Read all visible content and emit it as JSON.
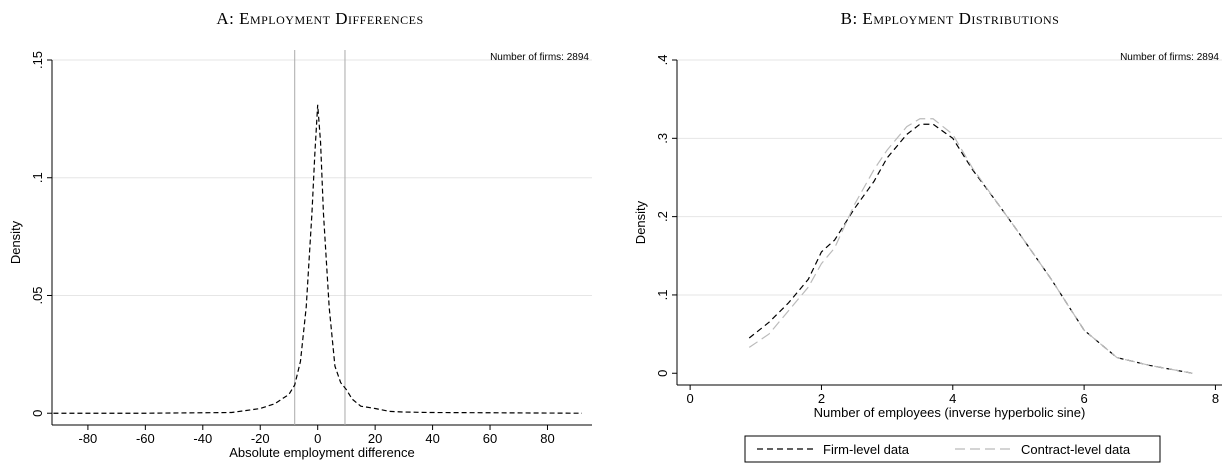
{
  "chart_data": [
    {
      "type": "line",
      "title": "A: Employment Differences",
      "annotation": "Number of firms: 2894",
      "xlabel": "Absolute employment difference",
      "ylabel": "Density",
      "x": [
        -92,
        -60,
        -30,
        -20,
        -15,
        -10,
        -8,
        -6,
        -4,
        -2,
        -1,
        0,
        1,
        2,
        4,
        6,
        8,
        10,
        12,
        15,
        20,
        25,
        30,
        40,
        60,
        92
      ],
      "values": [
        0,
        0,
        0.0003,
        0.002,
        0.004,
        0.008,
        0.012,
        0.022,
        0.045,
        0.085,
        0.11,
        0.131,
        0.115,
        0.085,
        0.045,
        0.02,
        0.013,
        0.01,
        0.006,
        0.003,
        0.002,
        0.0008,
        0.0005,
        0.0003,
        0.0002,
        0
      ],
      "color": "#000000",
      "vlines": [
        -8,
        9.5
      ],
      "xlim": [
        -92.5,
        95.5
      ],
      "xticks": [
        -80,
        -60,
        -40,
        -20,
        0,
        20,
        40,
        60,
        80
      ],
      "ylim": [
        -0.005,
        0.15
      ],
      "yticks": [
        {
          "value": 0,
          "label": "0"
        },
        {
          "value": 0.05,
          "label": ".05"
        },
        {
          "value": 0.1,
          "label": ".1"
        },
        {
          "value": 0.15,
          "label": ".15"
        }
      ],
      "grid": true
    },
    {
      "type": "line",
      "title": "B: Employment Distributions",
      "annotation": "Number of firms: 2894",
      "xlabel": "Number of employees (inverse hyperbolic sine)",
      "ylabel": "Density",
      "x": [
        0.9,
        1.2,
        1.5,
        1.8,
        2.0,
        2.2,
        2.5,
        2.8,
        3.0,
        3.3,
        3.5,
        3.7,
        4.0,
        4.3,
        4.7,
        5.0,
        5.5,
        6.0,
        6.5,
        7.0,
        7.65
      ],
      "series": [
        {
          "name": "Firm-level data",
          "color": "#000000",
          "values": [
            0.045,
            0.065,
            0.09,
            0.12,
            0.155,
            0.17,
            0.21,
            0.245,
            0.275,
            0.305,
            0.318,
            0.318,
            0.3,
            0.26,
            0.215,
            0.18,
            0.12,
            0.055,
            0.02,
            0.01,
            0
          ]
        },
        {
          "name": "Contract-level data",
          "color": "#bbbbbb",
          "values": [
            0.033,
            0.05,
            0.08,
            0.11,
            0.14,
            0.16,
            0.215,
            0.26,
            0.285,
            0.315,
            0.325,
            0.325,
            0.305,
            0.262,
            0.215,
            0.18,
            0.12,
            0.055,
            0.02,
            0.01,
            0
          ]
        }
      ],
      "xlim": [
        -0.2,
        8.1
      ],
      "xticks": [
        0,
        2,
        4,
        6,
        8
      ],
      "ylim": [
        -0.015,
        0.4
      ],
      "yticks": [
        0,
        {
          "value": 0.1,
          "label": ".1"
        },
        {
          "value": 0.2,
          "label": ".2"
        },
        {
          "value": 0.3,
          "label": ".3"
        },
        {
          "value": 0.4,
          "label": ".4"
        }
      ],
      "grid": true,
      "legend": "bottom"
    }
  ]
}
